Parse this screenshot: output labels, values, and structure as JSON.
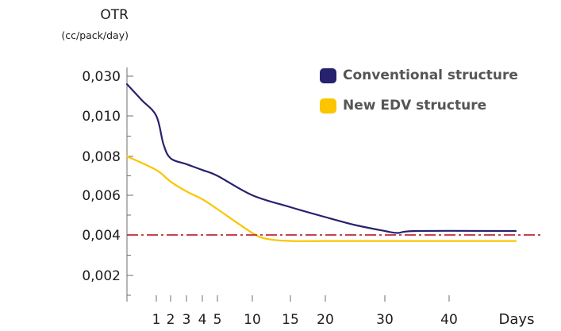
{
  "chart_data": {
    "type": "line",
    "ylabel": "OTR",
    "yunit": "(cc/pack/day)",
    "xlabel": "Days",
    "x_ticks": [
      "1",
      "2",
      "3",
      "4",
      "5",
      "10",
      "15",
      "20",
      "30",
      "40"
    ],
    "y_ticks": [
      "0,030",
      "0,010",
      "0,008",
      "0,006",
      "0,004",
      "0,002"
    ],
    "y_scale": "non-linear (0,002 to 0,008 evenly spaced; 0,010 and 0,030 compressed above)",
    "legend_position": "top-right",
    "series": [
      {
        "name": "Conventional structure",
        "color": "#27226d",
        "points": [
          {
            "x": 0,
            "y": 0.026
          },
          {
            "x": 0.5,
            "y": 0.018
          },
          {
            "x": 1,
            "y": 0.01
          },
          {
            "x": 1.5,
            "y": 0.0086
          },
          {
            "x": 2,
            "y": 0.0079
          },
          {
            "x": 3,
            "y": 0.0076
          },
          {
            "x": 4,
            "y": 0.0073
          },
          {
            "x": 5,
            "y": 0.007
          },
          {
            "x": 10,
            "y": 0.006
          },
          {
            "x": 15,
            "y": 0.0054
          },
          {
            "x": 20,
            "y": 0.0049
          },
          {
            "x": 25,
            "y": 0.0045
          },
          {
            "x": 30,
            "y": 0.0042
          },
          {
            "x": 32,
            "y": 0.0041
          },
          {
            "x": 35,
            "y": 0.0042
          },
          {
            "x": 48,
            "y": 0.0042
          }
        ]
      },
      {
        "name": "New EDV structure",
        "color": "#fbc500",
        "points": [
          {
            "x": 0,
            "y": 0.008
          },
          {
            "x": 1,
            "y": 0.0073
          },
          {
            "x": 2,
            "y": 0.0067
          },
          {
            "x": 3,
            "y": 0.0062
          },
          {
            "x": 4,
            "y": 0.0058
          },
          {
            "x": 5,
            "y": 0.0053
          },
          {
            "x": 10,
            "y": 0.0041
          },
          {
            "x": 12,
            "y": 0.0038
          },
          {
            "x": 15,
            "y": 0.0037
          },
          {
            "x": 20,
            "y": 0.0037
          },
          {
            "x": 30,
            "y": 0.0037
          },
          {
            "x": 48,
            "y": 0.0037
          }
        ]
      }
    ],
    "reference_line": {
      "y": 0.004,
      "color": "#c0273a",
      "style": "dash-dot"
    },
    "grid": false
  }
}
